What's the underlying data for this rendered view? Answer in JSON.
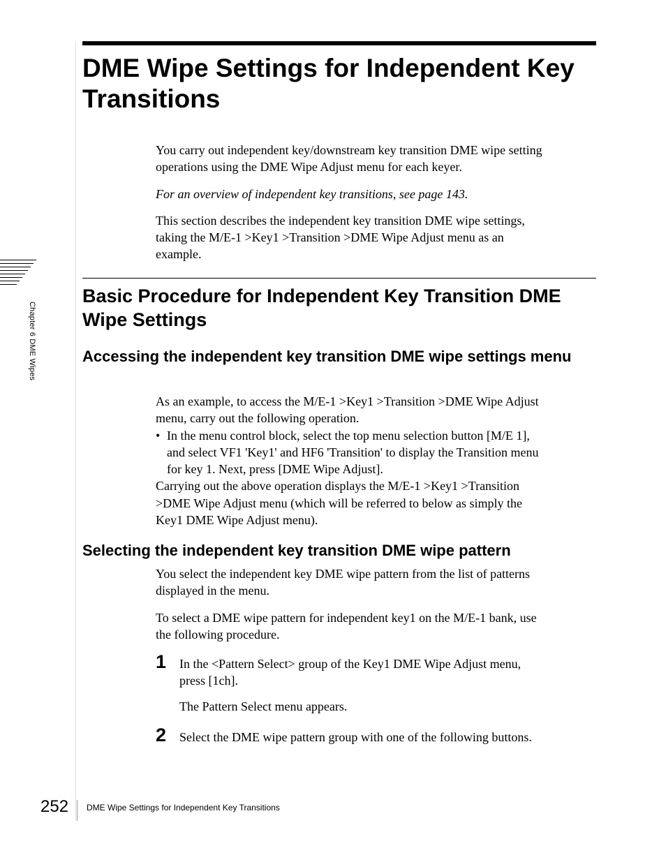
{
  "colors": {
    "text": "#000000",
    "background": "#ffffff",
    "rule": "#000000",
    "light_rule": "#e0e0e0",
    "footer_divider": "#999999"
  },
  "fonts": {
    "heading_family": "Arial, Helvetica, sans-serif",
    "body_family": "Georgia, Times New Roman, serif",
    "main_title_size": 37,
    "section_title_size": 27,
    "subheading_size": 22,
    "body_size": 18,
    "step_num_size": 27,
    "sidebar_size": 11,
    "page_num_size": 24,
    "footer_size": 12
  },
  "main_title": "DME Wipe Settings for Independent Key Transitions",
  "intro": {
    "p1": "You carry out independent key/downstream key transition DME wipe setting operations using the DME Wipe Adjust menu for each keyer.",
    "p2": "For an overview of independent key transitions, see page 143.",
    "p3": "This section describes the independent key transition DME wipe settings, taking the M/E-1 >Key1 >Transition >DME Wipe Adjust menu as an example."
  },
  "section_title": "Basic Procedure for Independent Key Transition DME Wipe Settings",
  "sub1": {
    "heading": "Accessing the independent key transition DME wipe settings menu",
    "p1": "As an example, to access the M/E-1 >Key1 >Transition >DME Wipe Adjust menu, carry out the following operation.",
    "bullet": "In the menu control block, select the top menu selection button [M/E 1], and select VF1 'Key1' and HF6 'Transition' to display the Transition menu for key 1. Next, press [DME Wipe Adjust].",
    "p2": "Carrying out the above operation displays the M/E-1 >Key1 >Transition >DME Wipe Adjust menu (which will be referred to below as simply the Key1 DME Wipe Adjust menu)."
  },
  "sub2": {
    "heading": "Selecting the independent key transition DME wipe pattern",
    "p1": "You select the independent key DME wipe pattern from the list of patterns displayed in the menu.",
    "p2": "To select a DME wipe pattern for independent key1 on the M/E-1 bank, use the following procedure.",
    "steps": [
      {
        "num": "1",
        "text": "In the <Pattern Select> group of the Key1 DME Wipe Adjust menu, press [1ch].",
        "after": "The Pattern Select menu appears."
      },
      {
        "num": "2",
        "text": "Select the DME wipe pattern group with one of the following buttons."
      }
    ]
  },
  "sidebar": "Chapter 6  DME Wipes",
  "footer": {
    "page": "252",
    "text": "DME Wipe Settings for Independent Key Transitions"
  }
}
